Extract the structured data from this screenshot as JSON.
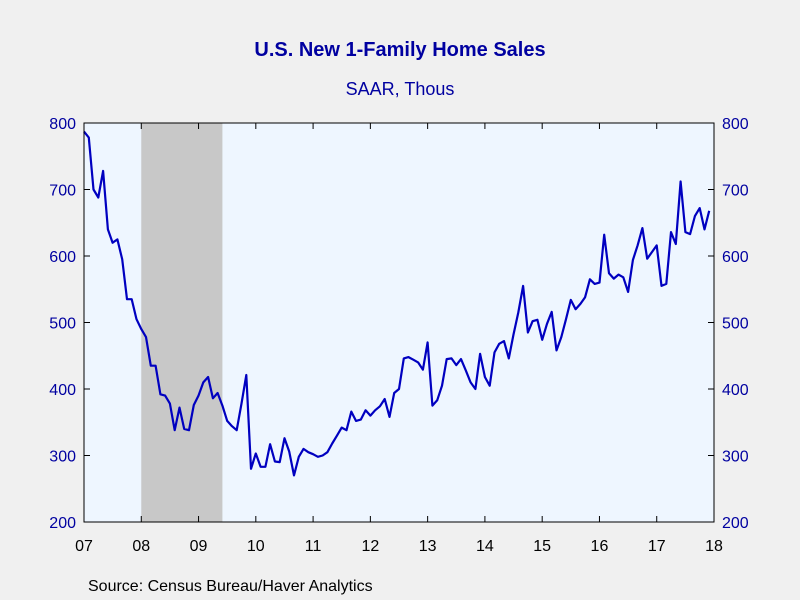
{
  "chart_data": {
    "type": "line",
    "title": "U.S. New 1-Family Home Sales",
    "subtitle": "SAAR, Thous",
    "source": "Source:  Census Bureau/Haver Analytics",
    "xlabel": "",
    "ylabel": "",
    "x_ticks": [
      "07",
      "08",
      "09",
      "10",
      "11",
      "12",
      "13",
      "14",
      "15",
      "16",
      "17",
      "18"
    ],
    "y_ticks": [
      200,
      300,
      400,
      500,
      600,
      700,
      800
    ],
    "ylim": [
      200,
      800
    ],
    "xlim": [
      "2007-01",
      "2018-01"
    ],
    "grid": false,
    "colors": {
      "line": "#0000c0",
      "axis_text": "#0000a0",
      "plot_bg": "#eef6ff",
      "recession": "#c8c8c8",
      "page_bg": "#f0f0f0"
    },
    "recession": {
      "start": "2008-01",
      "end": "2009-06"
    },
    "series": [
      {
        "x": [
          "2007-01",
          "2007-02",
          "2007-03",
          "2007-04",
          "2007-05",
          "2007-06",
          "2007-07",
          "2007-08",
          "2007-09",
          "2007-10",
          "2007-11",
          "2007-12",
          "2008-01",
          "2008-02",
          "2008-03",
          "2008-04",
          "2008-05",
          "2008-06",
          "2008-07",
          "2008-08",
          "2008-09",
          "2008-10",
          "2008-11",
          "2008-12",
          "2009-01",
          "2009-02",
          "2009-03",
          "2009-04",
          "2009-05",
          "2009-06",
          "2009-07",
          "2009-08",
          "2009-09",
          "2009-10",
          "2009-11",
          "2009-12",
          "2010-01",
          "2010-02",
          "2010-03",
          "2010-04",
          "2010-05",
          "2010-06",
          "2010-07",
          "2010-08",
          "2010-09",
          "2010-10",
          "2010-11",
          "2010-12",
          "2011-01",
          "2011-02",
          "2011-03",
          "2011-04",
          "2011-05",
          "2011-06",
          "2011-07",
          "2011-08",
          "2011-09",
          "2011-10",
          "2011-11",
          "2011-12",
          "2012-01",
          "2012-02",
          "2012-03",
          "2012-04",
          "2012-05",
          "2012-06",
          "2012-07",
          "2012-08",
          "2012-09",
          "2012-10",
          "2012-11",
          "2012-12",
          "2013-01",
          "2013-02",
          "2013-03",
          "2013-04",
          "2013-05",
          "2013-06",
          "2013-07",
          "2013-08",
          "2013-09",
          "2013-10",
          "2013-11",
          "2013-12",
          "2014-01",
          "2014-02",
          "2014-03",
          "2014-04",
          "2014-05",
          "2014-06",
          "2014-07",
          "2014-08",
          "2014-09",
          "2014-10",
          "2014-11",
          "2014-12",
          "2015-01",
          "2015-02",
          "2015-03",
          "2015-04",
          "2015-05",
          "2015-06",
          "2015-07",
          "2015-08",
          "2015-09",
          "2015-10",
          "2015-11",
          "2015-12",
          "2016-01",
          "2016-02",
          "2016-03",
          "2016-04",
          "2016-05",
          "2016-06",
          "2016-07",
          "2016-08",
          "2016-09",
          "2016-10",
          "2016-11",
          "2016-12",
          "2017-01",
          "2017-02",
          "2017-03",
          "2017-04",
          "2017-05",
          "2017-06",
          "2017-07",
          "2017-08",
          "2017-09",
          "2017-10",
          "2017-11",
          "2017-12"
        ],
        "values": [
          787,
          778,
          700,
          688,
          728,
          640,
          620,
          625,
          595,
          535,
          535,
          505,
          490,
          478,
          435,
          435,
          392,
          390,
          378,
          338,
          372,
          340,
          338,
          376,
          390,
          410,
          418,
          386,
          394,
          375,
          352,
          344,
          338,
          378,
          421,
          280,
          303,
          283,
          283,
          317,
          291,
          290,
          326,
          306,
          270,
          298,
          310,
          305,
          302,
          298,
          300,
          305,
          318,
          330,
          342,
          338,
          366,
          352,
          354,
          368,
          360,
          368,
          374,
          385,
          358,
          394,
          400,
          446,
          448,
          444,
          440,
          429,
          470,
          375,
          383,
          405,
          445,
          446,
          436,
          445,
          428,
          410,
          400,
          453,
          418,
          405,
          455,
          468,
          472,
          446,
          482,
          515,
          555,
          485,
          502,
          504,
          474,
          498,
          516,
          458,
          478,
          505,
          534,
          520,
          528,
          538,
          565,
          558,
          560,
          632,
          574,
          566,
          572,
          568,
          546,
          594,
          616,
          642,
          596,
          606,
          616,
          555,
          558,
          636,
          618,
          712,
          636,
          633,
          660,
          672,
          640,
          668
        ]
      }
    ]
  }
}
